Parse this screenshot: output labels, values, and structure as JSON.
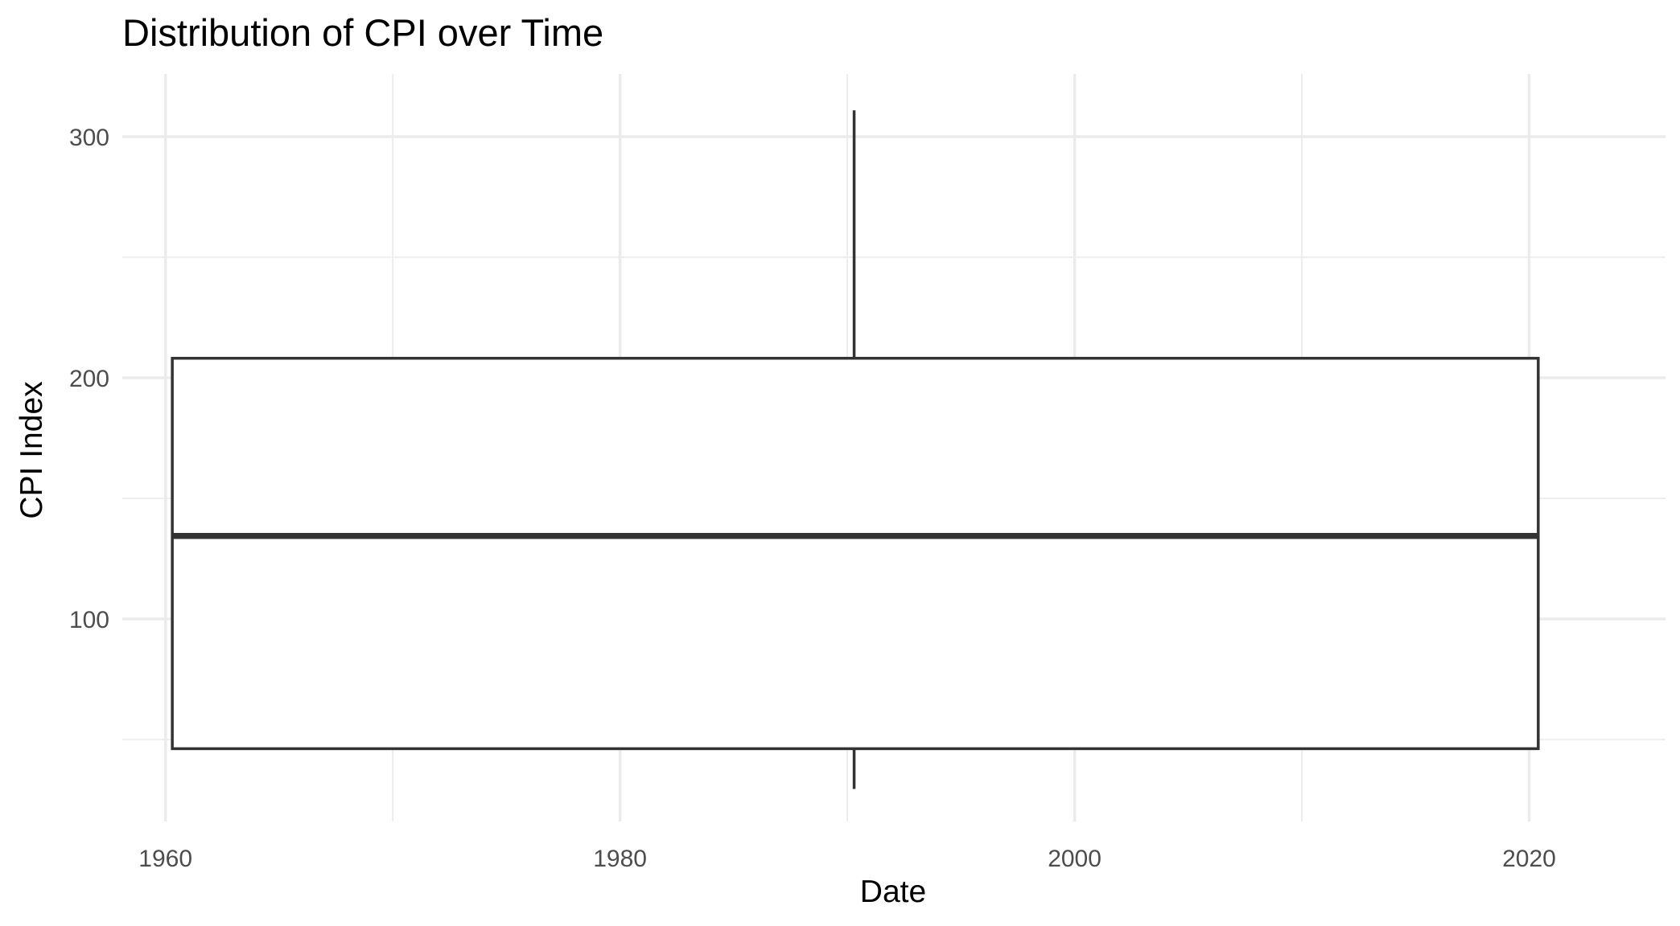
{
  "chart_data": {
    "type": "boxplot",
    "title": "Distribution of CPI over Time",
    "xlabel": "Date",
    "ylabel": "CPI Index",
    "x_ticks": [
      "1960",
      "1980",
      "2000",
      "2020"
    ],
    "y_ticks": [
      "100",
      "200",
      "300"
    ],
    "xlim": [
      1958.1,
      2026.0
    ],
    "ylim": [
      16,
      326
    ],
    "grid": true,
    "legend": "none",
    "box": {
      "x_start": 1960.3,
      "x_end": 2020.4,
      "x_center": 1990.3,
      "whisker_low": 29.5,
      "q1": 46.2,
      "median": 134.4,
      "q3": 208.1,
      "whisker_high": 310.9
    }
  }
}
